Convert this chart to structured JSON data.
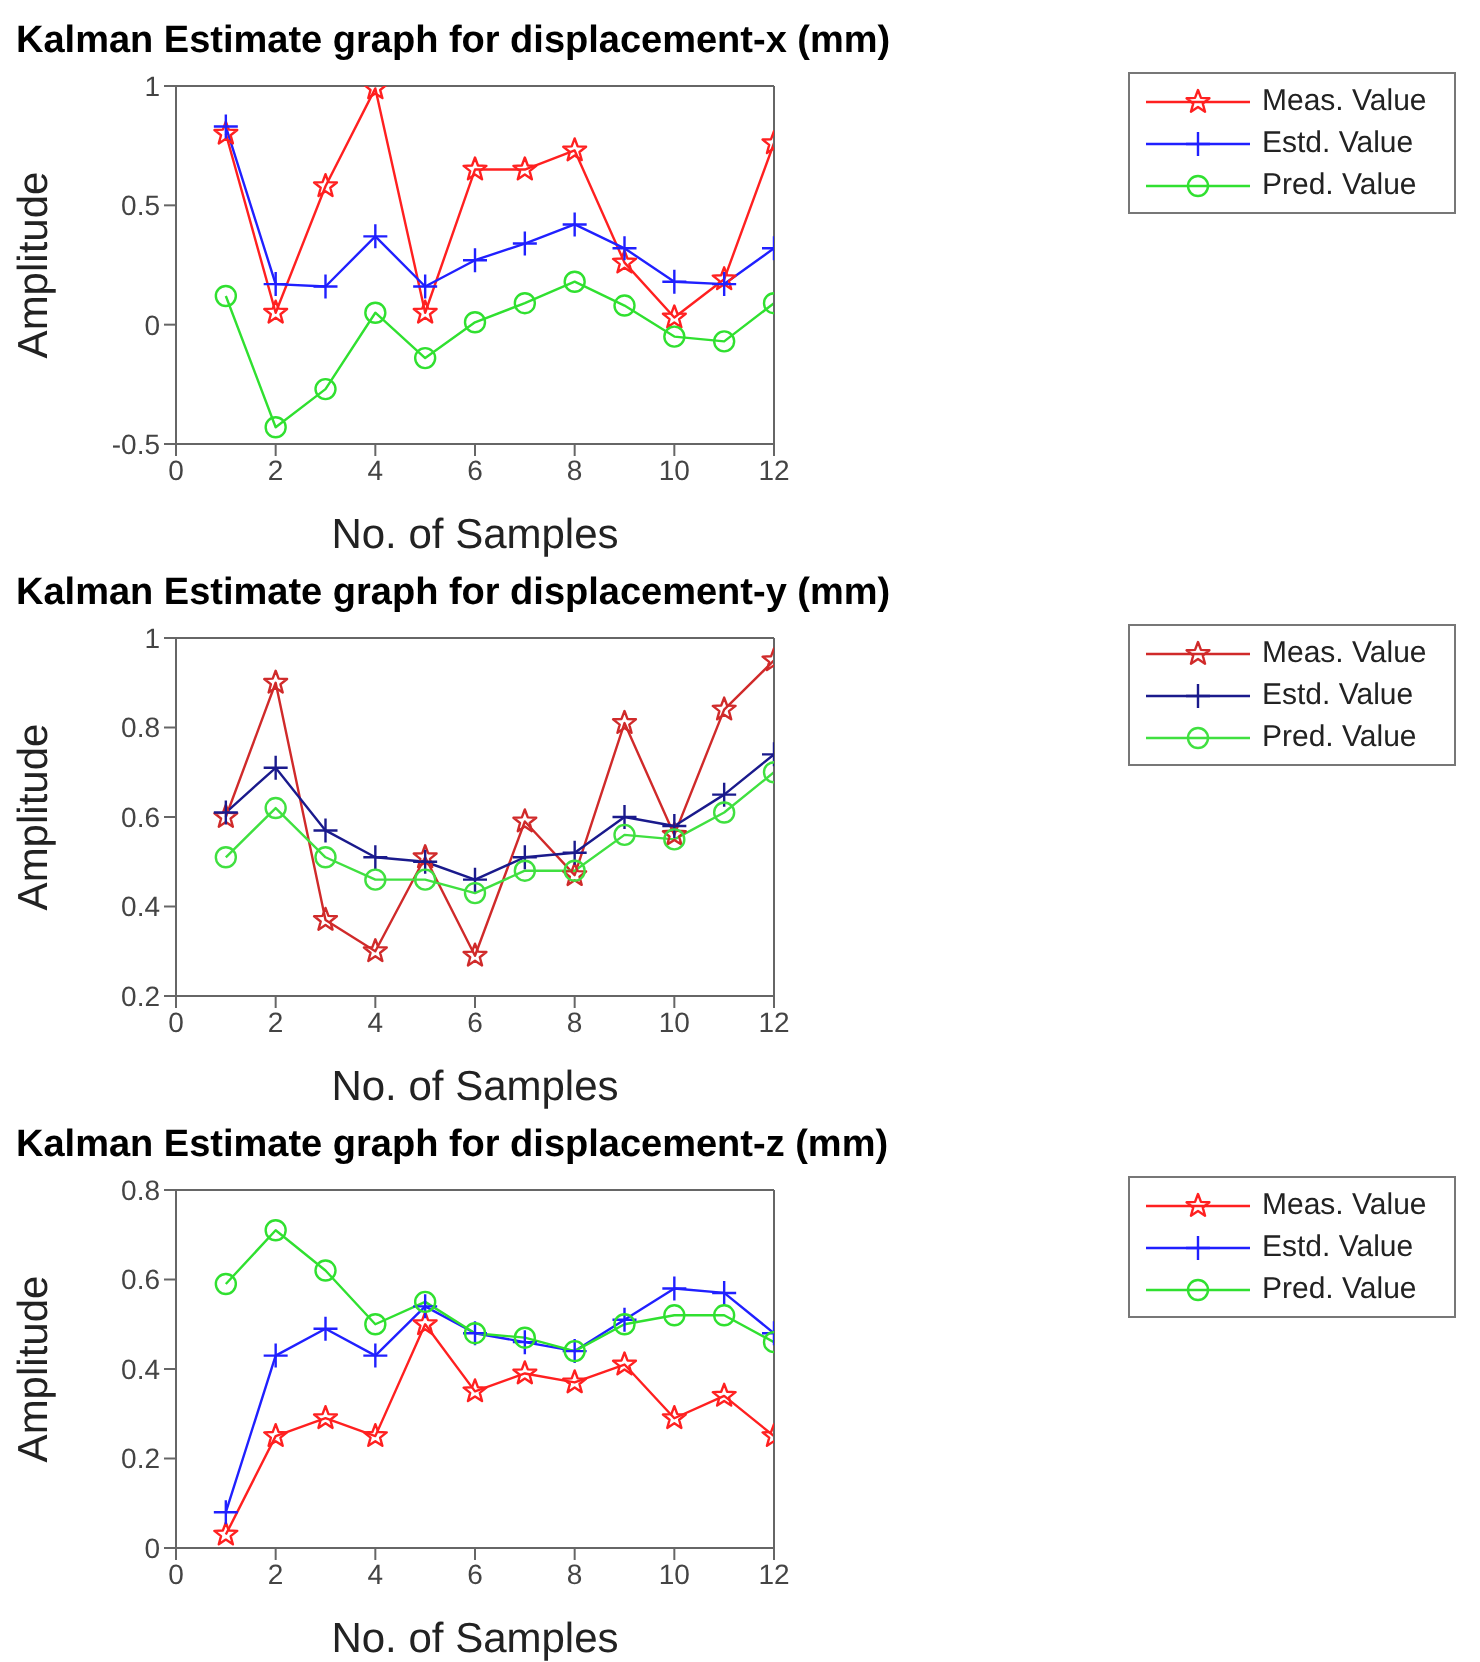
{
  "chart_data": [
    {
      "type": "line",
      "title": "Kalman Estimate graph for displacement-x (mm)",
      "xlabel": "No. of Samples",
      "ylabel": "Amplitude",
      "x": [
        1,
        2,
        3,
        4,
        5,
        6,
        7,
        8,
        9,
        10,
        11,
        12
      ],
      "xlim": [
        0,
        12
      ],
      "xticks": [
        0,
        2,
        4,
        6,
        8,
        10,
        12
      ],
      "ylim": [
        -0.5,
        1
      ],
      "yticks": [
        -0.5,
        0,
        0.5,
        1
      ],
      "grid": false,
      "legend": "right",
      "line_style": "solid",
      "series": [
        {
          "name": "Meas. Value",
          "color": "#ff2020",
          "marker": "star",
          "values": [
            0.8,
            0.05,
            0.58,
            0.99,
            0.05,
            0.65,
            0.65,
            0.73,
            0.26,
            0.03,
            0.19,
            0.76
          ]
        },
        {
          "name": "Estd. Value",
          "color": "#2020ff",
          "marker": "cross",
          "values": [
            0.83,
            0.17,
            0.16,
            0.37,
            0.16,
            0.27,
            0.34,
            0.42,
            0.32,
            0.18,
            0.17,
            0.32
          ]
        },
        {
          "name": "Pred. Value",
          "color": "#30e030",
          "marker": "circle",
          "values": [
            0.12,
            -0.43,
            -0.27,
            0.05,
            -0.14,
            0.01,
            0.09,
            0.18,
            0.08,
            -0.05,
            -0.07,
            0.09
          ]
        }
      ]
    },
    {
      "type": "line",
      "title": "Kalman Estimate graph for displacement-y (mm)",
      "xlabel": "No. of Samples",
      "ylabel": "Amplitude",
      "x": [
        1,
        2,
        3,
        4,
        5,
        6,
        7,
        8,
        9,
        10,
        11,
        12
      ],
      "xlim": [
        0,
        12
      ],
      "xticks": [
        0,
        2,
        4,
        6,
        8,
        10,
        12
      ],
      "ylim": [
        0.2,
        1
      ],
      "yticks": [
        0.2,
        0.4,
        0.6,
        0.8,
        1
      ],
      "grid": false,
      "legend": "right",
      "line_style": "solid",
      "series": [
        {
          "name": "Meas. Value",
          "color": "#d02a2a",
          "marker": "star",
          "values": [
            0.6,
            0.9,
            0.37,
            0.3,
            0.51,
            0.29,
            0.59,
            0.47,
            0.81,
            0.56,
            0.84,
            0.95
          ]
        },
        {
          "name": "Estd. Value",
          "color": "#1a1a8c",
          "marker": "cross",
          "values": [
            0.61,
            0.71,
            0.57,
            0.51,
            0.5,
            0.46,
            0.51,
            0.52,
            0.6,
            0.58,
            0.65,
            0.74
          ]
        },
        {
          "name": "Pred. Value",
          "color": "#40e040",
          "marker": "circle",
          "values": [
            0.51,
            0.62,
            0.51,
            0.46,
            0.46,
            0.43,
            0.48,
            0.48,
            0.56,
            0.55,
            0.61,
            0.7
          ]
        }
      ]
    },
    {
      "type": "line",
      "title": "Kalman Estimate graph for displacement-z (mm)",
      "xlabel": "No. of Samples",
      "ylabel": "Amplitude",
      "x": [
        1,
        2,
        3,
        4,
        5,
        6,
        7,
        8,
        9,
        10,
        11,
        12
      ],
      "xlim": [
        0,
        12
      ],
      "xticks": [
        0,
        2,
        4,
        6,
        8,
        10,
        12
      ],
      "ylim": [
        0,
        0.8
      ],
      "yticks": [
        0,
        0.2,
        0.4,
        0.6,
        0.8
      ],
      "grid": false,
      "legend": "right",
      "line_style": "solid",
      "series": [
        {
          "name": "Meas. Value",
          "color": "#ff2020",
          "marker": "star",
          "values": [
            0.03,
            0.25,
            0.29,
            0.25,
            0.5,
            0.35,
            0.39,
            0.37,
            0.41,
            0.29,
            0.34,
            0.25
          ]
        },
        {
          "name": "Estd. Value",
          "color": "#2020ff",
          "marker": "cross",
          "values": [
            0.08,
            0.43,
            0.49,
            0.43,
            0.54,
            0.48,
            0.46,
            0.44,
            0.51,
            0.58,
            0.57,
            0.48
          ]
        },
        {
          "name": "Pred. Value",
          "color": "#30e030",
          "marker": "circle",
          "values": [
            0.59,
            0.71,
            0.62,
            0.5,
            0.55,
            0.48,
            0.47,
            0.44,
            0.5,
            0.52,
            0.52,
            0.46
          ]
        }
      ]
    }
  ]
}
